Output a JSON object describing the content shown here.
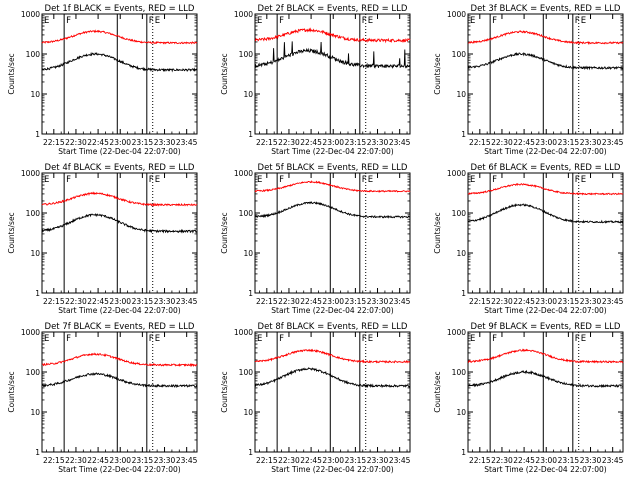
{
  "chart_data": {
    "type": "line",
    "grid": false,
    "yscale": "log",
    "ylim": [
      1,
      1000
    ],
    "xlim": [
      "22:07",
      "23:52"
    ],
    "x_tick_labels": [
      "22:15",
      "22:30",
      "22:45",
      "23:00",
      "23:15",
      "23:30",
      "23:45"
    ],
    "y_tick_labels": [
      "1",
      "10",
      "100",
      "1000"
    ],
    "ylabel": "Counts/sec",
    "xlabel": "Start Time (22-Dec-04 22:07:00)",
    "series_colors": {
      "events": "#000000",
      "lld": "#ff0000"
    },
    "markers": [
      {
        "label": "E",
        "time": "22:07",
        "style": "solid"
      },
      {
        "label": "F",
        "time": "22:22",
        "style": "solid"
      },
      {
        "label": "",
        "time": "22:58",
        "style": "solid"
      },
      {
        "label": "F",
        "time": "23:18",
        "style": "solid"
      },
      {
        "label": "E",
        "time": "23:22",
        "style": "dotted"
      },
      {
        "label": "",
        "time": "23:52",
        "style": "dotted"
      }
    ],
    "panels": [
      {
        "title": "Det 1f BLACK = Events, RED = LLD",
        "events_base": 40,
        "events_peak": 100,
        "lld_base": 190,
        "lld_peak": 370,
        "peak_time": "22:43",
        "noise": 0.06,
        "spikes": false
      },
      {
        "title": "Det 2f BLACK = Events, RED = LLD",
        "events_base": 50,
        "events_peak": 120,
        "lld_base": 220,
        "lld_peak": 400,
        "peak_time": "22:43",
        "noise": 0.1,
        "spikes": true
      },
      {
        "title": "Det 3f BLACK = Events, RED = LLD",
        "events_base": 45,
        "events_peak": 100,
        "lld_base": 190,
        "lld_peak": 360,
        "peak_time": "22:43",
        "noise": 0.06,
        "spikes": false
      },
      {
        "title": "Det 4f BLACK = Events, RED = LLD",
        "events_base": 35,
        "events_peak": 90,
        "lld_base": 160,
        "lld_peak": 310,
        "peak_time": "22:43",
        "noise": 0.06,
        "spikes": false
      },
      {
        "title": "Det 5f BLACK = Events, RED = LLD",
        "events_base": 80,
        "events_peak": 180,
        "lld_base": 350,
        "lld_peak": 600,
        "peak_time": "22:45",
        "noise": 0.05,
        "spikes": false
      },
      {
        "title": "Det 6f BLACK = Events, RED = LLD",
        "events_base": 60,
        "events_peak": 160,
        "lld_base": 300,
        "lld_peak": 520,
        "peak_time": "22:43",
        "noise": 0.05,
        "spikes": false
      },
      {
        "title": "Det 7f BLACK = Events, RED = LLD",
        "events_base": 45,
        "events_peak": 90,
        "lld_base": 150,
        "lld_peak": 280,
        "peak_time": "22:43",
        "noise": 0.06,
        "spikes": false
      },
      {
        "title": "Det 8f BLACK = Events, RED = LLD",
        "events_base": 45,
        "events_peak": 120,
        "lld_base": 180,
        "lld_peak": 350,
        "peak_time": "22:43",
        "noise": 0.06,
        "spikes": false
      },
      {
        "title": "Det 9f BLACK = Events, RED = LLD",
        "events_base": 45,
        "events_peak": 100,
        "lld_base": 180,
        "lld_peak": 350,
        "peak_time": "22:45",
        "noise": 0.06,
        "spikes": false
      }
    ]
  }
}
